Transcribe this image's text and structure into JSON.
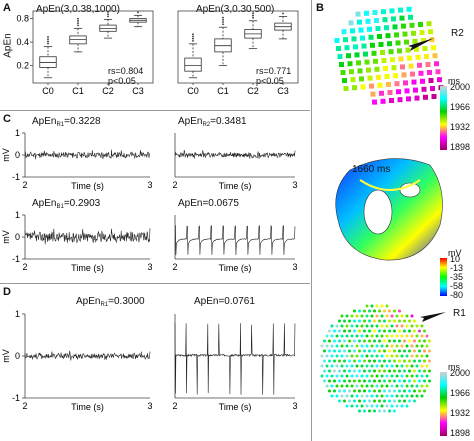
{
  "panel_labels": {
    "A": "A",
    "B": "B",
    "C": "C",
    "D": "D"
  },
  "panel_a": {
    "left": {
      "title": "ApEn(3,0.38,1000)",
      "ylabel": "ApEn",
      "yticks": [
        "0.8",
        "0.4",
        "0.2"
      ],
      "categories": [
        "C0",
        "C1",
        "C2",
        "C3"
      ],
      "rs": "rs=0.804",
      "p": "p<0.05"
    },
    "right": {
      "title": "ApEn(3,0.30,500)",
      "categories": [
        "C0",
        "C1",
        "C2",
        "C3"
      ],
      "rs": "rs=0.771",
      "p": "p<0.05"
    }
  },
  "panel_c": {
    "traces": [
      {
        "label_base": "ApEn",
        "label_sub": "R1",
        "label_value": "=0.3228"
      },
      {
        "label_base": "ApEn",
        "label_sub": "R2",
        "label_value": "=0.3481"
      },
      {
        "label_base": "ApEn",
        "label_sub": "B1",
        "label_value": "=0.2903"
      },
      {
        "label_base": "ApEn",
        "label_sub": "",
        "label_value": "=0.0675"
      }
    ],
    "ylabel": "mV",
    "yticks": [
      "1",
      "0",
      "-1"
    ],
    "xticks": [
      "2",
      "3"
    ],
    "xlabel": "Time (s)"
  },
  "panel_d": {
    "traces": [
      {
        "label_base": "ApEn",
        "label_sub": "R1",
        "label_value": "=0.3000"
      },
      {
        "label_base": "ApEn",
        "label_sub": "",
        "label_value": "=0.0761"
      }
    ],
    "ylabel": "mV",
    "yticks": [
      "1",
      "0",
      "-1"
    ],
    "xticks": [
      "2",
      "3"
    ],
    "xlabel": "Time (s)"
  },
  "panel_b": {
    "top_colorbar": {
      "unit": "ms",
      "ticks": [
        "2000",
        "1966",
        "1932",
        "1898"
      ]
    },
    "mid_colorbar": {
      "unit": "mV",
      "ticks": [
        "10",
        "-13",
        "-35",
        "-58",
        "-80"
      ]
    },
    "bottom_colorbar": {
      "unit": "ms",
      "ticks": [
        "2000",
        "1966",
        "1932",
        "1898"
      ]
    },
    "time_label": "1660 ms",
    "r2_label": "R2",
    "r1_label": "R1"
  },
  "chart_data": [
    {
      "type": "box",
      "title": "ApEn(3,0.38,1000)",
      "ylabel": "ApEn",
      "categories": [
        "C0",
        "C1",
        "C2",
        "C3"
      ],
      "scale": "log",
      "ylim": [
        0.12,
        1.0
      ],
      "boxes": [
        {
          "q1": 0.19,
          "median": 0.22,
          "q3": 0.26,
          "whisker_low": 0.14,
          "whisker_high": 0.35
        },
        {
          "q1": 0.38,
          "median": 0.43,
          "q3": 0.48,
          "whisker_low": 0.3,
          "whisker_high": 0.6
        },
        {
          "q1": 0.55,
          "median": 0.6,
          "q3": 0.66,
          "whisker_low": 0.45,
          "whisker_high": 0.78
        },
        {
          "q1": 0.72,
          "median": 0.76,
          "q3": 0.8,
          "whisker_low": 0.63,
          "whisker_high": 0.88
        }
      ],
      "annotation": [
        "rs=0.804",
        "p<0.05"
      ]
    },
    {
      "type": "box",
      "title": "ApEn(3,0.30,500)",
      "categories": [
        "C0",
        "C1",
        "C2",
        "C3"
      ],
      "scale": "log",
      "ylim": [
        0.12,
        1.0
      ],
      "boxes": [
        {
          "q1": 0.17,
          "median": 0.2,
          "q3": 0.25,
          "whisker_low": 0.14,
          "whisker_high": 0.38
        },
        {
          "q1": 0.3,
          "median": 0.36,
          "q3": 0.44,
          "whisker_low": 0.2,
          "whisker_high": 0.62
        },
        {
          "q1": 0.45,
          "median": 0.51,
          "q3": 0.58,
          "whisker_low": 0.33,
          "whisker_high": 0.75
        },
        {
          "q1": 0.57,
          "median": 0.63,
          "q3": 0.7,
          "whisker_low": 0.44,
          "whisker_high": 0.85
        }
      ],
      "annotation": [
        "rs=0.771",
        "p<0.05"
      ]
    }
  ],
  "colors": {
    "box_stroke": "#333333",
    "trace": "#222222",
    "separator": "#999999"
  }
}
